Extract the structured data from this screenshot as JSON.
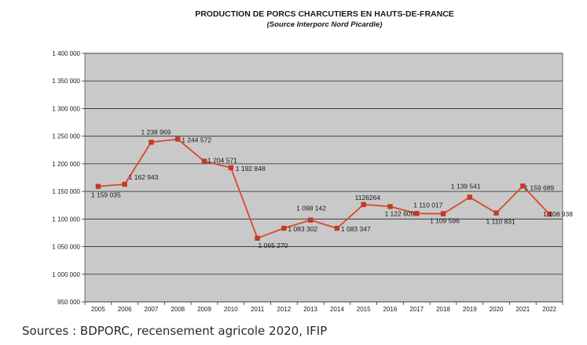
{
  "chart_data": {
    "type": "line",
    "title": "PRODUCTION DE PORCS CHARCUTIERS EN HAUTS-DE-FRANCE",
    "subtitle": "(Source Interporc Nord Picardie)",
    "xlabel": "",
    "ylabel": "",
    "x": [
      "2005",
      "2006",
      "2007",
      "2008",
      "2009",
      "2010",
      "2011",
      "2012",
      "2013",
      "2014",
      "2015",
      "2016",
      "2017",
      "2018",
      "2019",
      "2020",
      "2021",
      "2022"
    ],
    "values": [
      1159035,
      1162943,
      1238969,
      1244572,
      1204571,
      1192848,
      1065270,
      1083302,
      1098142,
      1083347,
      1126264,
      1122609,
      1110017,
      1109596,
      1139541,
      1110831,
      1159689,
      1108938
    ],
    "data_labels": [
      "1 159 035",
      "1 162 943",
      "1 238 969",
      "1 244 572",
      "1 204 571",
      "1 192 848",
      "1 065 270",
      "1 083 302",
      "1 098 142",
      "1 083 347",
      "1126264",
      "1 122 609",
      "1 110 017",
      "1 109 596",
      "1 139 541",
      "1 110 831",
      "1 159 689",
      "1 108 938"
    ],
    "y_ticks": [
      950000,
      1000000,
      1050000,
      1100000,
      1150000,
      1200000,
      1250000,
      1300000,
      1350000,
      1400000
    ],
    "y_tick_labels": [
      "950 000",
      "1 000 000",
      "1 050 000",
      "1 100 000",
      "1 150 000",
      "1 200 000",
      "1 250 000",
      "1 300 000",
      "1 350 000",
      "1 400 000"
    ],
    "ylim": [
      950000,
      1400000
    ],
    "grid": true,
    "legend": "none",
    "colors": {
      "line": "#d9482b",
      "marker": "#c43a22",
      "plot_background": "#c9c9c9",
      "grid": "#2b2b2b"
    }
  },
  "caption": "Sources : BDPORC, recensement agricole 2020, IFIP"
}
